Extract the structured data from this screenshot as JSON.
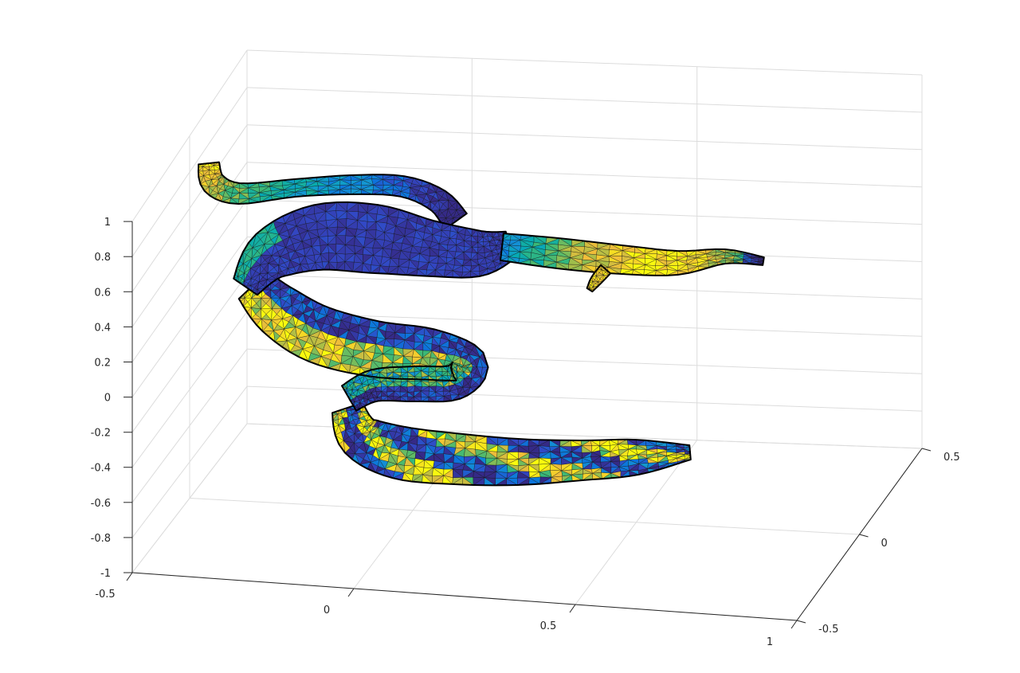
{
  "chart_data": {
    "type": "surface-mesh-3d",
    "title": "",
    "xlabel": "",
    "ylabel": "",
    "zlabel": "",
    "grid": true,
    "box": false,
    "colormap": "parula",
    "mesh_edge_color": "#111111",
    "xlim": [
      -0.5,
      1
    ],
    "ylim": [
      -0.5,
      0.5
    ],
    "zlim": [
      -1,
      1
    ],
    "x_ticks": [
      -0.5,
      0,
      0.5,
      1
    ],
    "x_tick_labels": [
      "-0.5",
      "0",
      "0.5",
      "1"
    ],
    "y_ticks": [
      -0.5,
      0,
      0.5
    ],
    "y_tick_labels": [
      "-0.5",
      "0",
      "0.5"
    ],
    "z_ticks": [
      -1,
      -0.8,
      -0.6,
      -0.4,
      -0.2,
      0,
      0.2,
      0.4,
      0.6,
      0.8,
      1
    ],
    "z_tick_labels": [
      "-1",
      "-0.8",
      "-0.6",
      "-0.4",
      "-0.2",
      "0",
      "0.2",
      "0.4",
      "0.6",
      "0.8",
      "1"
    ],
    "surface": {
      "description": "coiled tubular vessel-like triangulated surface, color mapped by scalar field",
      "tube_sections": [
        {
          "name": "upper-left-tube",
          "color_range": [
            0.45,
            1.0
          ]
        },
        {
          "name": "upper-central-body",
          "color_range": [
            0.0,
            0.25
          ]
        },
        {
          "name": "right-branch",
          "color_range": [
            0.3,
            0.95
          ]
        },
        {
          "name": "middle-coil",
          "color_range": [
            0.0,
            1.0
          ]
        },
        {
          "name": "lower-tube",
          "color_range": [
            0.0,
            1.0
          ]
        }
      ]
    }
  }
}
